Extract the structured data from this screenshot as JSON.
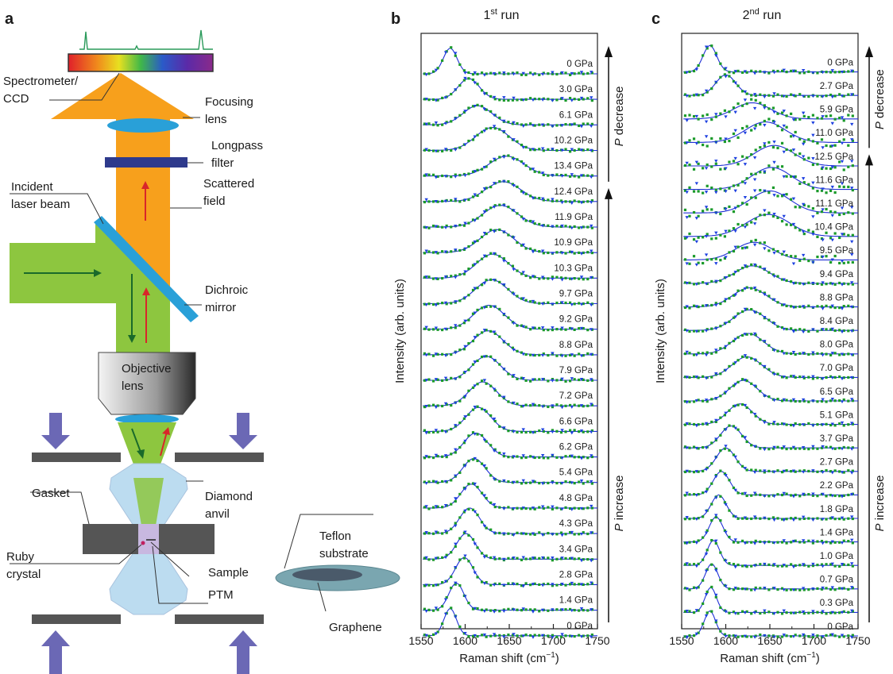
{
  "panel_a": {
    "label": "a",
    "callouts": [
      {
        "key": "spectrometer",
        "lines": [
          "Spectrometer/",
          "CCD"
        ]
      },
      {
        "key": "focusing_lens",
        "lines": [
          "Focusing",
          "lens"
        ]
      },
      {
        "key": "longpass",
        "lines": [
          "Longpass",
          "filter"
        ]
      },
      {
        "key": "incident",
        "lines": [
          "Incident",
          "laser beam"
        ]
      },
      {
        "key": "scattered",
        "lines": [
          "Scattered",
          "field"
        ]
      },
      {
        "key": "dichroic",
        "lines": [
          "Dichroic",
          "mirror"
        ]
      },
      {
        "key": "objective",
        "lines": [
          "Objective",
          "lens"
        ]
      },
      {
        "key": "gasket",
        "lines": [
          "Gasket"
        ]
      },
      {
        "key": "diamond",
        "lines": [
          "Diamond",
          "anvil"
        ]
      },
      {
        "key": "teflon",
        "lines": [
          "Teflon",
          "substrate"
        ]
      },
      {
        "key": "ruby",
        "lines": [
          "Ruby",
          "crystal"
        ]
      },
      {
        "key": "sample",
        "lines": [
          "Sample"
        ]
      },
      {
        "key": "ptm",
        "lines": [
          "PTM"
        ]
      },
      {
        "key": "graphene",
        "lines": [
          "Graphene"
        ]
      }
    ],
    "colors": {
      "beam_green": "#8dc63f",
      "scattered_orange": "#f7a01c",
      "lens_blue": "#29a0d8",
      "filter_navy": "#2e3a8c",
      "anvil_blue": "#bcdcf0",
      "gasket_gray": "#555555",
      "load_arrow": "#6b68b5"
    }
  },
  "chart_data": [
    {
      "type": "line",
      "panel": "b",
      "title": "1st run",
      "title_base": "1",
      "title_sup": "st",
      "title_rest": " run",
      "xlabel": "Raman shift (cm",
      "xlabel_sup": "−1",
      "xlabel_end": ")",
      "ylabel": "Intensity (arb. units)",
      "xlim": [
        1550,
        1750
      ],
      "xticks": [
        "1550",
        "1600",
        "1650",
        "1700",
        "1750"
      ],
      "arrow_up_label": {
        "italic": "P",
        "text": " decrease"
      },
      "arrow_up_label2": {
        "italic": "P",
        "text": " increase"
      },
      "spectra": [
        {
          "label": "0 GPa",
          "peak": 1583,
          "width": 11,
          "amp": 0.8
        },
        {
          "label": "3.0 GPa",
          "peak": 1604,
          "width": 17,
          "amp": 0.65
        },
        {
          "label": "6.1 GPa",
          "peak": 1614,
          "width": 23,
          "amp": 0.6
        },
        {
          "label": "10.2 GPa",
          "peak": 1631,
          "width": 27,
          "amp": 0.72
        },
        {
          "label": "13.4 GPa",
          "peak": 1647,
          "width": 28,
          "amp": 0.62
        },
        {
          "label": "12.4 GPa",
          "peak": 1643,
          "width": 28,
          "amp": 0.62
        },
        {
          "label": "11.9 GPa",
          "peak": 1640,
          "width": 28,
          "amp": 0.68
        },
        {
          "label": "10.9 GPa",
          "peak": 1636,
          "width": 27,
          "amp": 0.72
        },
        {
          "label": "10.3 GPa",
          "peak": 1631,
          "width": 26,
          "amp": 0.75
        },
        {
          "label": "9.7 GPa",
          "peak": 1630,
          "width": 26,
          "amp": 0.75
        },
        {
          "label": "9.2 GPa",
          "peak": 1627,
          "width": 25,
          "amp": 0.75
        },
        {
          "label": "8.8 GPa",
          "peak": 1626,
          "width": 24,
          "amp": 0.75
        },
        {
          "label": "7.9 GPa",
          "peak": 1624,
          "width": 23,
          "amp": 0.75
        },
        {
          "label": "7.2 GPa",
          "peak": 1620,
          "width": 22,
          "amp": 0.75
        },
        {
          "label": "6.6 GPa",
          "peak": 1615,
          "width": 20,
          "amp": 0.75
        },
        {
          "label": "6.2 GPa",
          "peak": 1612,
          "width": 19,
          "amp": 0.75
        },
        {
          "label": "5.4 GPa",
          "peak": 1610,
          "width": 18,
          "amp": 0.75
        },
        {
          "label": "4.8 GPa",
          "peak": 1607,
          "width": 17,
          "amp": 0.75
        },
        {
          "label": "4.3 GPa",
          "peak": 1605,
          "width": 16,
          "amp": 0.8
        },
        {
          "label": "3.4 GPa",
          "peak": 1601,
          "width": 15,
          "amp": 0.8
        },
        {
          "label": "2.8 GPa",
          "peak": 1599,
          "width": 14,
          "amp": 0.85
        },
        {
          "label": "1.4 GPa",
          "peak": 1590,
          "width": 12,
          "amp": 0.85
        },
        {
          "label": "0 GPa",
          "peak": 1583,
          "width": 10,
          "amp": 0.85
        }
      ],
      "decrease_count": 5
    },
    {
      "type": "line",
      "panel": "c",
      "title": "2nd run",
      "title_base": "2",
      "title_sup": "nd",
      "title_rest": " run",
      "xlabel": "Raman shift (cm",
      "xlabel_sup": "−1",
      "xlabel_end": ")",
      "ylabel": "Intensity (arb. units)",
      "xlim": [
        1550,
        1750
      ],
      "xticks": [
        "1550",
        "1600",
        "1650",
        "1700",
        "1750"
      ],
      "arrow_up_label": {
        "italic": "P",
        "text": " decrease"
      },
      "arrow_up_label2": {
        "italic": "P",
        "text": " increase"
      },
      "spectra": [
        {
          "label": "0 GPa",
          "peak": 1582,
          "width": 11,
          "amp": 0.9
        },
        {
          "label": "2.7 GPa",
          "peak": 1600,
          "width": 16,
          "amp": 0.7
        },
        {
          "label": "5.9 GPa",
          "peak": 1630,
          "width": 30,
          "amp": 0.55
        },
        {
          "label": "11.0 GPa",
          "peak": 1645,
          "width": 32,
          "amp": 0.7
        },
        {
          "label": "12.5 GPa",
          "peak": 1655,
          "width": 32,
          "amp": 0.7
        },
        {
          "label": "11.6 GPa",
          "peak": 1652,
          "width": 32,
          "amp": 0.75
        },
        {
          "label": "11.1 GPa",
          "peak": 1650,
          "width": 32,
          "amp": 0.75
        },
        {
          "label": "10.4 GPa",
          "peak": 1648,
          "width": 35,
          "amp": 0.75
        },
        {
          "label": "9.5 GPa",
          "peak": 1632,
          "width": 30,
          "amp": 0.6
        },
        {
          "label": "9.4 GPa",
          "peak": 1630,
          "width": 28,
          "amp": 0.6
        },
        {
          "label": "8.8 GPa",
          "peak": 1627,
          "width": 27,
          "amp": 0.65
        },
        {
          "label": "8.4 GPa",
          "peak": 1627,
          "width": 26,
          "amp": 0.7
        },
        {
          "label": "8.0 GPa",
          "peak": 1625,
          "width": 25,
          "amp": 0.7
        },
        {
          "label": "7.0 GPa",
          "peak": 1624,
          "width": 24,
          "amp": 0.7
        },
        {
          "label": "6.5 GPa",
          "peak": 1620,
          "width": 22,
          "amp": 0.7
        },
        {
          "label": "5.1 GPa",
          "peak": 1616,
          "width": 20,
          "amp": 0.7
        },
        {
          "label": "3.7 GPa",
          "peak": 1606,
          "width": 17,
          "amp": 0.75
        },
        {
          "label": "2.7 GPa",
          "peak": 1600,
          "width": 15,
          "amp": 0.8
        },
        {
          "label": "2.2 GPa",
          "peak": 1595,
          "width": 13,
          "amp": 0.8
        },
        {
          "label": "1.8 GPa",
          "peak": 1592,
          "width": 12,
          "amp": 0.8
        },
        {
          "label": "1.4 GPa",
          "peak": 1589,
          "width": 11,
          "amp": 0.85
        },
        {
          "label": "1.0 GPa",
          "peak": 1586,
          "width": 10,
          "amp": 0.85
        },
        {
          "label": "0.7 GPa",
          "peak": 1584,
          "width": 10,
          "amp": 0.85
        },
        {
          "label": "0.3 GPa",
          "peak": 1583,
          "width": 9,
          "amp": 0.85
        },
        {
          "label": "0 GPa",
          "peak": 1582,
          "width": 9,
          "amp": 0.85
        }
      ],
      "decrease_count": 4
    }
  ],
  "colors": {
    "fit": "#1f2fd6",
    "data_green": "#1a9a2a",
    "data_blue": "#1e40e0"
  }
}
